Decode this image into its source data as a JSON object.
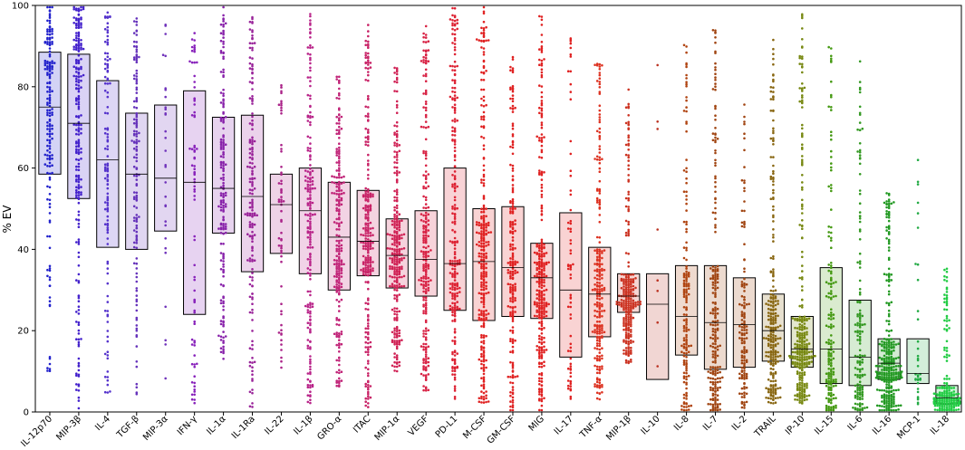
{
  "chart_data": {
    "type": "box-swarm",
    "title": "",
    "xlabel": "",
    "ylabel": "% EV",
    "ylim": [
      0,
      100
    ],
    "yticks": [
      0,
      20,
      40,
      60,
      80,
      100
    ],
    "grid": false,
    "categories": [
      {
        "name": "IL-12p70",
        "color": "#2222cc",
        "q1": 58.5,
        "median": 75,
        "q3": 88.5,
        "n": 170,
        "min": 9,
        "max": 100
      },
      {
        "name": "MIP-3β",
        "color": "#4422cc",
        "q1": 52.5,
        "median": 71,
        "q3": 88,
        "n": 230,
        "min": 0,
        "max": 100
      },
      {
        "name": "IL-4",
        "color": "#5533cc",
        "q1": 40.5,
        "median": 62,
        "q3": 81.5,
        "n": 120,
        "min": 4,
        "max": 100
      },
      {
        "name": "TGF-β",
        "color": "#6633bb",
        "q1": 40,
        "median": 58.5,
        "q3": 73.5,
        "n": 140,
        "min": 3,
        "max": 97
      },
      {
        "name": "MIP-3α",
        "color": "#7033bb",
        "q1": 44.5,
        "median": 57.5,
        "q3": 75.5,
        "n": 30,
        "min": 4,
        "max": 98
      },
      {
        "name": "IFN-γ",
        "color": "#8822bb",
        "q1": 24,
        "median": 56.5,
        "q3": 79,
        "n": 80,
        "min": 2,
        "max": 98
      },
      {
        "name": "IL-1α",
        "color": "#8822aa",
        "q1": 44,
        "median": 55,
        "q3": 72.5,
        "n": 180,
        "min": 13,
        "max": 100
      },
      {
        "name": "IL-1Ra",
        "color": "#992299",
        "q1": 34.5,
        "median": 53,
        "q3": 73,
        "n": 170,
        "min": 1,
        "max": 100
      },
      {
        "name": "IL-22",
        "color": "#aa2288",
        "q1": 39,
        "median": 51,
        "q3": 58.5,
        "n": 60,
        "min": 10,
        "max": 84
      },
      {
        "name": "IL-1β",
        "color": "#b82288",
        "q1": 34,
        "median": 49.5,
        "q3": 60,
        "n": 190,
        "min": 2,
        "max": 98
      },
      {
        "name": "GRO-α",
        "color": "#c02277",
        "q1": 30,
        "median": 43,
        "q3": 56.5,
        "n": 220,
        "min": 6,
        "max": 83
      },
      {
        "name": "ITAC",
        "color": "#c82266",
        "q1": 33.5,
        "median": 42,
        "q3": 54.5,
        "n": 250,
        "min": 1,
        "max": 96
      },
      {
        "name": "MIP-1α",
        "color": "#d02255",
        "q1": 30.5,
        "median": 38.5,
        "q3": 47.5,
        "n": 270,
        "min": 10,
        "max": 85
      },
      {
        "name": "VEGF",
        "color": "#d82244",
        "q1": 28.5,
        "median": 37.5,
        "q3": 49.5,
        "n": 230,
        "min": 5,
        "max": 95
      },
      {
        "name": "PD-L1",
        "color": "#dd2233",
        "q1": 25,
        "median": 36.5,
        "q3": 60,
        "n": 240,
        "min": 3,
        "max": 100
      },
      {
        "name": "M-CSF",
        "color": "#e02222",
        "q1": 22.5,
        "median": 37,
        "q3": 50,
        "n": 280,
        "min": 2,
        "max": 100
      },
      {
        "name": "GM-CSF",
        "color": "#e02222",
        "q1": 23.5,
        "median": 35.5,
        "q3": 50.5,
        "n": 200,
        "min": 0,
        "max": 88
      },
      {
        "name": "MIG",
        "color": "#e02222",
        "q1": 23,
        "median": 33,
        "q3": 41.5,
        "n": 290,
        "min": 0,
        "max": 98
      },
      {
        "name": "IL-17",
        "color": "#e02222",
        "q1": 13.5,
        "median": 30,
        "q3": 49,
        "n": 70,
        "min": 1,
        "max": 96
      },
      {
        "name": "TNF-α",
        "color": "#dd3322",
        "q1": 18.5,
        "median": 29,
        "q3": 40.5,
        "n": 230,
        "min": 3,
        "max": 86
      },
      {
        "name": "MIP-1β",
        "color": "#cc3322",
        "q1": 24.5,
        "median": 28.5,
        "q3": 34,
        "n": 240,
        "min": 12,
        "max": 80
      },
      {
        "name": "IL-10",
        "color": "#bb3322",
        "q1": 8,
        "median": 26.5,
        "q3": 34,
        "n": 8,
        "min": 7,
        "max": 88
      },
      {
        "name": "IL-8",
        "color": "#b04411",
        "q1": 14,
        "median": 23.5,
        "q3": 36,
        "n": 160,
        "min": 0,
        "max": 92
      },
      {
        "name": "IL-7",
        "color": "#a04411",
        "q1": 10.5,
        "median": 22,
        "q3": 36,
        "n": 220,
        "min": 0,
        "max": 94
      },
      {
        "name": "IL-2",
        "color": "#a04411",
        "q1": 11,
        "median": 21.5,
        "q3": 33,
        "n": 140,
        "min": 1,
        "max": 82
      },
      {
        "name": "TRAIL",
        "color": "#886611",
        "q1": 12.5,
        "median": 20,
        "q3": 29,
        "n": 250,
        "min": 2,
        "max": 92
      },
      {
        "name": "IP-10",
        "color": "#778811",
        "q1": 11,
        "median": 15.5,
        "q3": 23.5,
        "n": 280,
        "min": 2,
        "max": 98
      },
      {
        "name": "IL-15",
        "color": "#449911",
        "q1": 7,
        "median": 15.5,
        "q3": 35.5,
        "n": 170,
        "min": 0,
        "max": 90
      },
      {
        "name": "IL-6",
        "color": "#339922",
        "q1": 6.5,
        "median": 13.5,
        "q3": 27.5,
        "n": 150,
        "min": 0,
        "max": 88
      },
      {
        "name": "IL-16",
        "color": "#229922",
        "q1": 8,
        "median": 12,
        "q3": 18,
        "n": 300,
        "min": 0,
        "max": 54
      },
      {
        "name": "MCP-1",
        "color": "#22aa44",
        "q1": 7,
        "median": 9.5,
        "q3": 18,
        "n": 35,
        "min": 1,
        "max": 65
      },
      {
        "name": "IL-18",
        "color": "#22cc44",
        "q1": 2,
        "median": 3.5,
        "q3": 6.5,
        "n": 180,
        "min": 0,
        "max": 36
      }
    ]
  }
}
